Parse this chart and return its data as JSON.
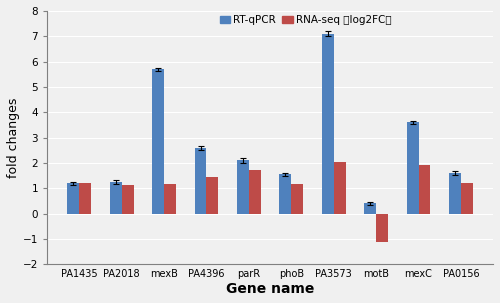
{
  "genes": [
    "PA1435",
    "PA2018",
    "mexB",
    "PA4396",
    "parR",
    "phoB",
    "PA3573",
    "motB",
    "mexC",
    "PA0156"
  ],
  "rtqpcr_values": [
    1.2,
    1.25,
    5.7,
    2.6,
    2.1,
    1.55,
    7.1,
    0.42,
    3.6,
    1.6
  ],
  "rnaseq_values": [
    1.22,
    1.13,
    1.18,
    1.43,
    1.72,
    1.18,
    2.05,
    -1.1,
    1.93,
    1.22
  ],
  "rtqpcr_errors": [
    0.07,
    0.07,
    0.06,
    0.08,
    0.08,
    0.07,
    0.1,
    0.06,
    0.07,
    0.07
  ],
  "rtqpcr_color": "#4F81BD",
  "rnaseq_color": "#BE4B48",
  "bar_width": 0.28,
  "ylim": [
    -2,
    8
  ],
  "yticks": [
    -2,
    -1,
    0,
    1,
    2,
    3,
    4,
    5,
    6,
    7,
    8
  ],
  "ylabel": "fold changes",
  "xlabel": "Gene name",
  "legend_rtqpcr": "RT-qPCR",
  "legend_rnaseq": "RNA-seq （log2FC）",
  "bg_color": "#F0F0F0"
}
